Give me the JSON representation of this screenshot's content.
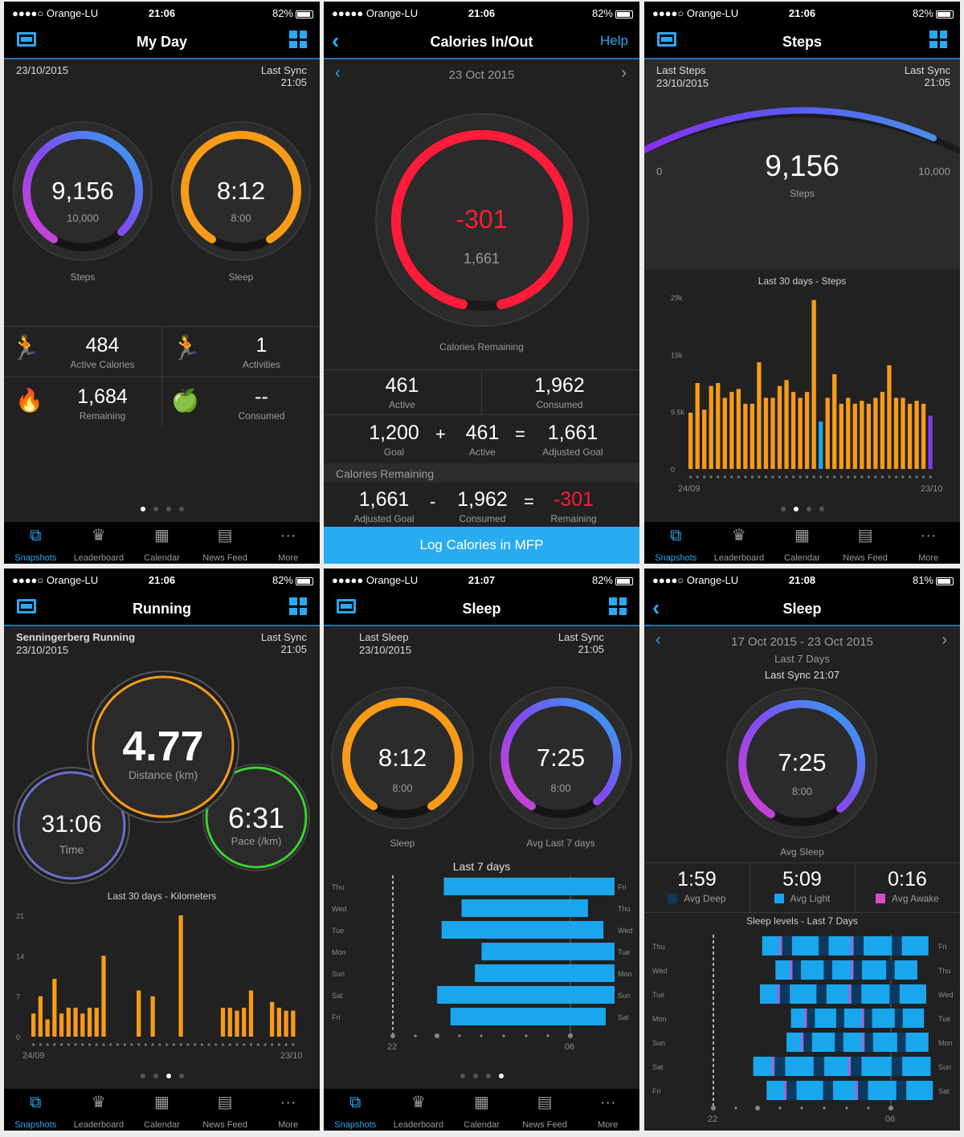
{
  "status": {
    "carrier": "●●●●○ Orange-LU",
    "carrier_full": "●●●●● Orange-LU",
    "battery": "82%",
    "battery2": "81%",
    "t1": "21:06",
    "t2": "21:07",
    "t3": "21:08"
  },
  "tabs": [
    "Snapshots",
    "Leaderboard",
    "Calendar",
    "News Feed",
    "More"
  ],
  "myday": {
    "title": "My Day",
    "date": "23/10/2015",
    "last_sync": "Last Sync",
    "sync_time": "21:05",
    "steps_value": "9,156",
    "steps_goal": "10,000",
    "steps_label": "Steps",
    "steps_fraction": 0.92,
    "sleep_value": "8:12",
    "sleep_goal": "8:00",
    "sleep_label": "Sleep",
    "sleep_fraction": 1.0,
    "active_cal_value": "484",
    "active_cal_label": "Active Calories",
    "activities_value": "1",
    "activities_label": "Activities",
    "remaining_value": "1,684",
    "remaining_label": "Remaining",
    "consumed_value": "--",
    "consumed_label": "Consumed"
  },
  "calories": {
    "title": "Calories In/Out",
    "help": "Help",
    "date": "23 Oct 2015",
    "remaining_value": "-301",
    "adjusted": "1,661",
    "remaining_label": "Calories Remaining",
    "active_value": "461",
    "active_label": "Active",
    "consumed_value": "1,962",
    "consumed_label": "Consumed",
    "goal_value": "1,200",
    "goal_label": "Goal",
    "plus": "+",
    "eq": "=",
    "minus": "-",
    "adj_goal_value": "1,661",
    "adj_goal_label": "Adjusted Goal",
    "section_label": "Calories Remaining",
    "remaining_result": "-301",
    "remaining_result_label": "Remaining",
    "cta": "Log Calories in MFP",
    "accent": "#ff1b3a"
  },
  "steps": {
    "title": "Steps",
    "last_steps": "Last Steps",
    "date": "23/10/2015",
    "last_sync": "Last Sync",
    "sync_time": "21:05",
    "value": "9,156",
    "unit": "Steps",
    "min": "0",
    "max": "10,000"
  },
  "running": {
    "title": "Running",
    "activity_name": "Senningerberg Running",
    "date": "23/10/2015",
    "last_sync": "Last Sync",
    "sync_time": "21:05",
    "distance_value": "4.77",
    "distance_label": "Distance (km)",
    "time_value": "31:06",
    "time_label": "Time",
    "pace_value": "6:31",
    "pace_label": "Pace (/km)"
  },
  "sleep": {
    "title": "Sleep",
    "last_sleep": "Last Sleep",
    "date": "23/10/2015",
    "last_sync": "Last Sync",
    "sync_time": "21:05",
    "value": "8:12",
    "goal": "8:00",
    "label": "Sleep",
    "avg_value": "7:25",
    "avg_goal": "8:00",
    "avg_label": "Avg Last 7 days"
  },
  "sleep_week": {
    "title": "Sleep",
    "range": "17 Oct 2015 - 23 Oct 2015",
    "subtitle": "Last 7 Days",
    "sync": "Last Sync 21:07",
    "avg_value": "7:25",
    "avg_goal": "8:00",
    "avg_label": "Avg Sleep",
    "deep_value": "1:59",
    "deep_label": "Avg Deep",
    "light_value": "5:09",
    "light_label": "Avg Light",
    "awake_value": "0:16",
    "awake_label": "Avg Awake"
  },
  "chart_data": [
    {
      "type": "bar",
      "title": "Last 30 days - Steps",
      "y_ticks": [
        "0",
        "9.5k",
        "19k",
        "29k"
      ],
      "ylim": [
        0,
        29000
      ],
      "x_start": "24/09",
      "x_end": "23/10",
      "goal": 9500,
      "values": [
        9500,
        14500,
        10000,
        14000,
        14500,
        12000,
        13000,
        13500,
        11000,
        11000,
        18000,
        12000,
        12000,
        14000,
        15000,
        13000,
        12000,
        13000,
        28500,
        8000,
        12000,
        16000,
        11000,
        12000,
        11000,
        11500,
        11000,
        12000,
        13000,
        17500,
        12000,
        12000,
        11000,
        11500,
        11000,
        9000
      ]
    },
    {
      "type": "bar",
      "title": "Last 30 days - Kilometers",
      "y_ticks": [
        "0",
        "7",
        "14",
        "21"
      ],
      "ylim": [
        0,
        21
      ],
      "x_start": "24/09",
      "x_end": "23/10",
      "values": [
        4,
        7,
        3,
        10,
        4,
        5,
        5,
        4,
        5,
        5,
        14,
        0,
        0,
        0,
        0,
        8,
        0,
        7,
        0,
        0,
        0,
        21,
        0,
        0,
        0,
        0,
        0,
        5,
        5,
        4.5,
        5,
        8,
        0,
        0,
        6,
        5,
        4.5,
        4.5
      ]
    },
    {
      "type": "bar",
      "title": "Last 7 days",
      "categories": [
        "Thu",
        "Wed",
        "Tue",
        "Mon",
        "Sun",
        "Sat",
        "Fri"
      ],
      "right_labels": [
        "Fri",
        "Thu",
        "Wed",
        "Tue",
        "Mon",
        "Sun",
        "Sat"
      ],
      "x_start": "22",
      "x_end": "06",
      "bars": [
        [
          0.23,
          1.0
        ],
        [
          0.31,
          0.88
        ],
        [
          0.22,
          0.95
        ],
        [
          0.4,
          1.0
        ],
        [
          0.37,
          1.0
        ],
        [
          0.2,
          1.0
        ],
        [
          0.26,
          0.96
        ]
      ]
    },
    {
      "type": "bar",
      "title": "Sleep levels - Last 7 Days",
      "categories": [
        "Thu",
        "Wed",
        "Tue",
        "Mon",
        "Sun",
        "Sat",
        "Fri"
      ],
      "right_labels": [
        "Fri",
        "Thu",
        "Wed",
        "Tue",
        "Mon",
        "Sun",
        "Sat"
      ],
      "x_start": "22",
      "x_end": "06",
      "bars": [
        [
          0.22,
          0.97
        ],
        [
          0.28,
          0.92
        ],
        [
          0.21,
          0.96
        ],
        [
          0.35,
          0.95
        ],
        [
          0.33,
          0.97
        ],
        [
          0.18,
          0.98
        ],
        [
          0.24,
          0.99
        ]
      ]
    }
  ]
}
